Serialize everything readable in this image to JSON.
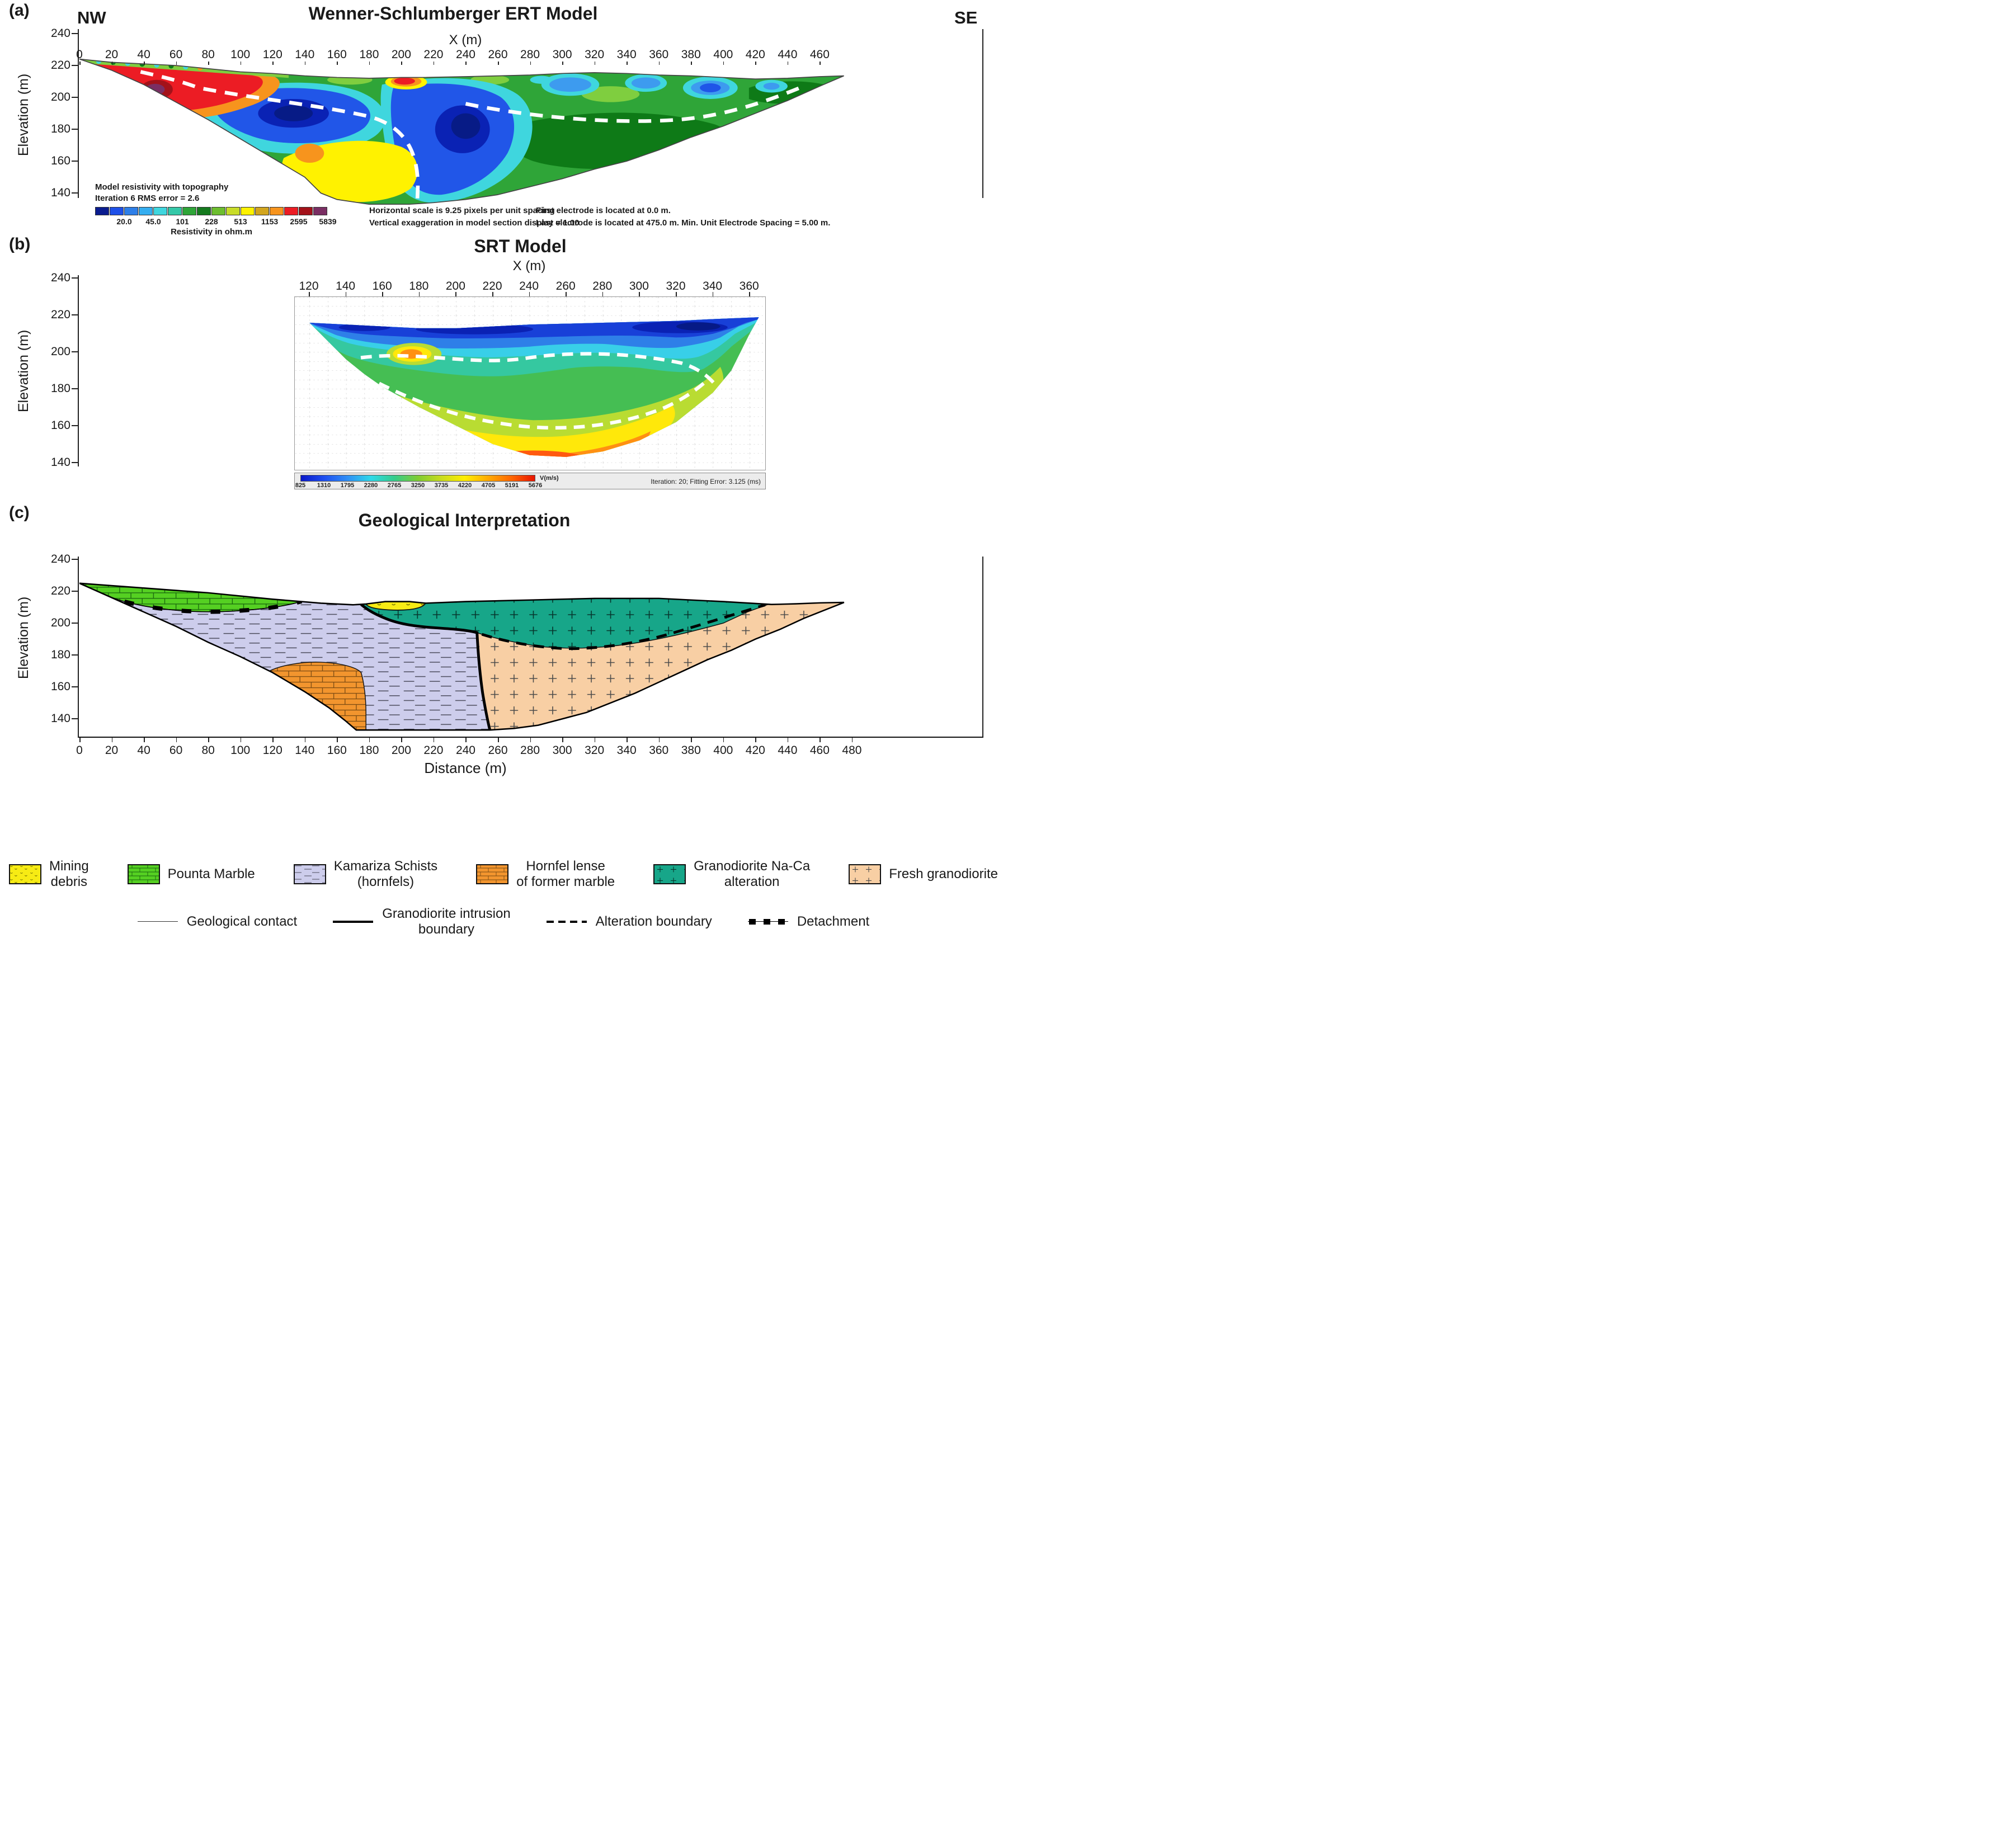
{
  "panel_a": {
    "tag": "(a)",
    "corner_left": "NW",
    "corner_right": "SE",
    "title": "Wenner-Schlumberger ERT Model",
    "xlabel": "X (m)",
    "ylabel": "Elevation (m)",
    "x_ticks": [
      0,
      20,
      40,
      60,
      80,
      100,
      120,
      140,
      160,
      180,
      200,
      220,
      240,
      260,
      280,
      300,
      320,
      340,
      360,
      380,
      400,
      420,
      440,
      460
    ],
    "y_ticks": [
      240,
      220,
      200,
      180,
      160,
      140
    ],
    "note_line1": "Model resistivity with topography",
    "note_line2": "Iteration 6 RMS error = 2.6",
    "colorbar": {
      "tick_values": [
        "20.0",
        "45.0",
        "101",
        "228",
        "513",
        "1153",
        "2595",
        "5839"
      ],
      "label": "Resistivity in ohm.m",
      "colors": [
        "#0A1C8F",
        "#1E50E8",
        "#2E7FE8",
        "#35AEF0",
        "#3FD6DE",
        "#35C8A8",
        "#2FA538",
        "#157A1E",
        "#6DBE2F",
        "#C8DC28",
        "#FFF200",
        "#D2A51E",
        "#F7941D",
        "#EC1C24",
        "#A3121A",
        "#7A2E63"
      ]
    },
    "footnotes": {
      "col1_line1": "Horizontal scale is 9.25 pixels per unit spacing",
      "col1_line2": "Vertical exaggeration in model section display = 1.00",
      "col2_line1": "First electrode is located at 0.0 m.",
      "col2_line2": "Last electrode is located at 475.0 m.    Min. Unit Electrode Spacing = 5.00 m."
    }
  },
  "panel_b": {
    "tag": "(b)",
    "title": "SRT Model",
    "xlabel": "X (m)",
    "ylabel": "Elevation (m)",
    "x_ticks": [
      120,
      140,
      160,
      180,
      200,
      220,
      240,
      260,
      280,
      300,
      320,
      340,
      360
    ],
    "y_ticks": [
      240,
      220,
      200,
      180,
      160,
      140
    ],
    "colorbar": {
      "values": [
        "825",
        "1310",
        "1795",
        "2280",
        "2765",
        "3250",
        "3735",
        "4220",
        "4705",
        "5191",
        "5676"
      ],
      "unit": "V(m/s)",
      "colors": [
        "#0A18C8",
        "#1E4FF0",
        "#2E8FF5",
        "#2ED9E8",
        "#35CC8A",
        "#7FCC33",
        "#C8DC1E",
        "#FFEE00",
        "#FFAA00",
        "#FF6600",
        "#E81400"
      ]
    },
    "status": "Iteration: 20; Fitting Error: 3.125 (ms)"
  },
  "panel_c": {
    "tag": "(c)",
    "title": "Geological Interpretation",
    "xlabel": "Distance (m)",
    "ylabel": "Elevation (m)",
    "x_ticks": [
      0,
      20,
      40,
      60,
      80,
      100,
      120,
      140,
      160,
      180,
      200,
      220,
      240,
      260,
      280,
      300,
      320,
      340,
      360,
      380,
      400,
      420,
      440,
      460,
      480
    ],
    "y_ticks": [
      240,
      220,
      200,
      180,
      160,
      140
    ]
  },
  "legend_units": [
    {
      "label": "Mining\ndebris",
      "color": "#F7EB14",
      "pattern": "debris-scatter"
    },
    {
      "label": "Pounta Marble",
      "color": "#55D022",
      "pattern": "brick"
    },
    {
      "label": "Kamariza Schists\n(hornfels)",
      "color": "#CDCDEC",
      "pattern": "dashed-foliation"
    },
    {
      "label": "Hornfel lense\nof former marble",
      "color": "#F2952E",
      "pattern": "brick"
    },
    {
      "label": "Granodiorite Na-Ca\nalteration",
      "color": "#17A689",
      "pattern": "plus"
    },
    {
      "label": "Fresh granodiorite",
      "color": "#F8CFA4",
      "pattern": "plus"
    }
  ],
  "legend_lines": [
    {
      "label": "Geological contact",
      "style": "thin-line"
    },
    {
      "label": "Granodiorite intrusion\nboundary",
      "style": "thick-line"
    },
    {
      "label": "Alteration boundary",
      "style": "thick-dashed"
    },
    {
      "label": "Detachment",
      "style": "line-with-thick-dashes"
    }
  ],
  "chart_data": [
    {
      "type": "heatmap",
      "panel": "a",
      "title": "Wenner-Schlumberger ERT Model",
      "orientation": "NW (left) to SE (right)",
      "xlabel": "X (m)",
      "ylabel": "Elevation (m)",
      "xlim": [
        0,
        475
      ],
      "ylim": [
        140,
        240
      ],
      "x_tick_step": 20,
      "colorbar": {
        "label": "Resistivity in ohm.m",
        "ticks": [
          20.0,
          45.0,
          101,
          228,
          513,
          1153,
          2595,
          5839
        ],
        "scale": "log"
      },
      "annotations": [
        "Model resistivity with topography",
        "Iteration 6 RMS error = 2.6",
        "Horizontal scale is 9.25 pixels per unit spacing",
        "Vertical exaggeration in model section display = 1.00",
        "First electrode is located at 0.0 m.",
        "Last electrode is located at 475.0 m.",
        "Min. Unit Electrode Spacing = 5.00 m."
      ],
      "features": [
        "High-resistivity red-purple zone (>2500 ohm.m) near surface at X=0-120 m, elev 185-225 m",
        "Low-resistivity blue zone (<45 ohm.m) at X=85-180 m, elev 175-210 m",
        "Large low-resistivity blue zone at X=195-270 m, elev 140-210 m with darkest core near X=240, elev 180",
        "Yellow zone (~1000 ohm.m) at X=125-210 m, elev 135-180 m",
        "Green background (100-500 ohm.m) toward SE with shallow blue-cyan patches at X=290-440 m, elev 195-212 m",
        "Small red anomaly at surface near X=200 m",
        "White dashed lines mark interpreted boundaries"
      ]
    },
    {
      "type": "heatmap",
      "panel": "b",
      "title": "SRT Model",
      "xlabel": "X (m)",
      "ylabel": "Elevation (m)",
      "xlim": [
        112,
        368
      ],
      "ylim": [
        136,
        230
      ],
      "x_tick_step": 20,
      "grid": "dotted",
      "colorbar": {
        "label": "V(m/s)",
        "ticks": [
          825,
          1310,
          1795,
          2280,
          2765,
          3250,
          3735,
          4220,
          4705,
          5191,
          5676
        ]
      },
      "status": "Iteration: 20; Fitting Error: 3.125 (ms)",
      "features": [
        "Low-velocity blue layer (<1800 m/s) along the surface, thickest at X=300-360 m",
        "Velocity increases with depth through cyan and green bands",
        "High-velocity yellow-orange core (>4700 m/s) at bottom center X=180-300 m, elev 140-165 m",
        "Small shallow high-velocity anomaly near X=175 m, elev 198 m",
        "White dashed lines mark interpreted boundaries"
      ]
    },
    {
      "type": "area",
      "panel": "c",
      "title": "Geological Interpretation",
      "xlabel": "Distance (m)",
      "ylabel": "Elevation (m)",
      "xlim": [
        0,
        480
      ],
      "ylim": [
        140,
        240
      ],
      "units": [
        {
          "name": "Pounta Marble",
          "location": "NW surface wedge, X=0-138 m, elev 205-225 m, bounded below by detachment"
        },
        {
          "name": "Kamariza Schists (hornfels)",
          "location": "central body, X=0-255 m, down to elev 133 m"
        },
        {
          "name": "Mining debris",
          "location": "small surface lens at X=178-215 m, elev 207-214 m"
        },
        {
          "name": "Hornfel lense of former marble",
          "location": "X=118-178 m, elev 133-176 m"
        },
        {
          "name": "Granodiorite Na-Ca alteration",
          "location": "upper SE body, X=175-430 m, elev 184-215 m"
        },
        {
          "name": "Fresh granodiorite",
          "location": "SE body, X=247-475 m, elev 133-213 m"
        }
      ],
      "lines": [
        "Geological contact",
        "Granodiorite intrusion boundary",
        "Alteration boundary",
        "Detachment"
      ]
    }
  ]
}
